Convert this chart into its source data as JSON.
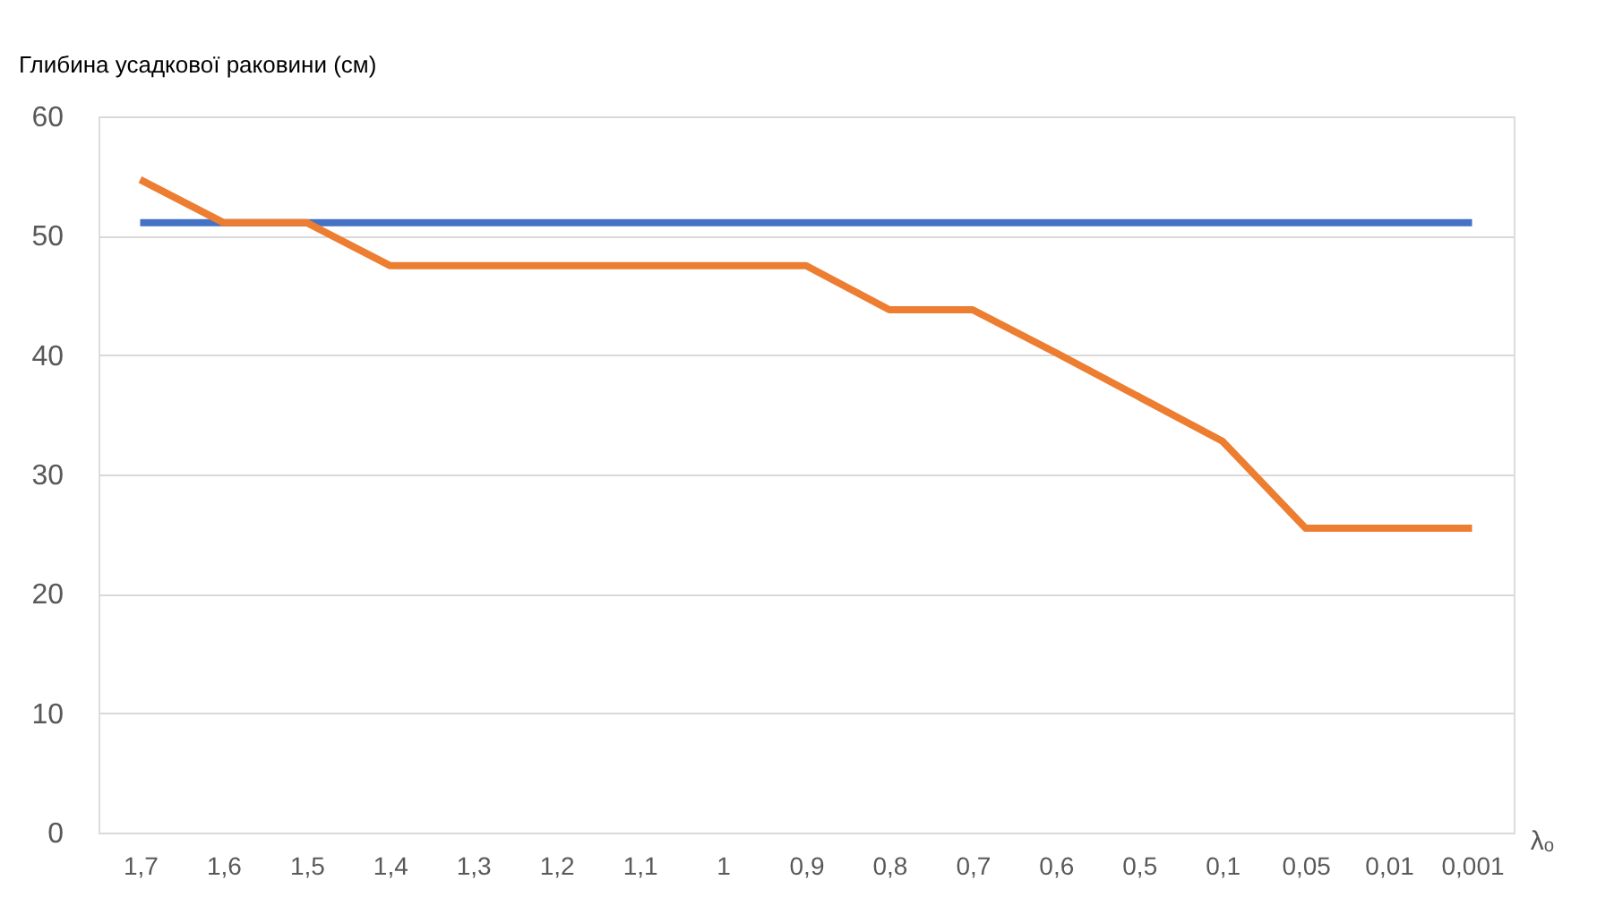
{
  "chart_data": {
    "type": "line",
    "ylabel": "Глибина усадкової раковини (см)",
    "xlabel": "λₒ",
    "categories": [
      "1,7",
      "1,6",
      "1,5",
      "1,4",
      "1,3",
      "1,2",
      "1,1",
      "1",
      "0,9",
      "0,8",
      "0,7",
      "0,6",
      "0,5",
      "0,1",
      "0,05",
      "0,01",
      "0,001"
    ],
    "series": [
      {
        "color": "#4472c4",
        "values": [
          51.1,
          51.1,
          51.1,
          51.1,
          51.1,
          51.1,
          51.1,
          51.1,
          51.1,
          51.1,
          51.1,
          51.1,
          51.1,
          51.1,
          51.1,
          51.1,
          51.1
        ]
      },
      {
        "color": "#ed7d31",
        "values": [
          54.7,
          51.1,
          51.1,
          47.5,
          47.5,
          47.5,
          47.5,
          47.5,
          47.5,
          43.8,
          43.8,
          40.2,
          36.5,
          32.8,
          25.5,
          25.5,
          25.5
        ]
      }
    ],
    "ylim": [
      0,
      60
    ],
    "yticks": [
      0,
      10,
      20,
      30,
      40,
      50,
      60
    ],
    "grid": "y"
  }
}
